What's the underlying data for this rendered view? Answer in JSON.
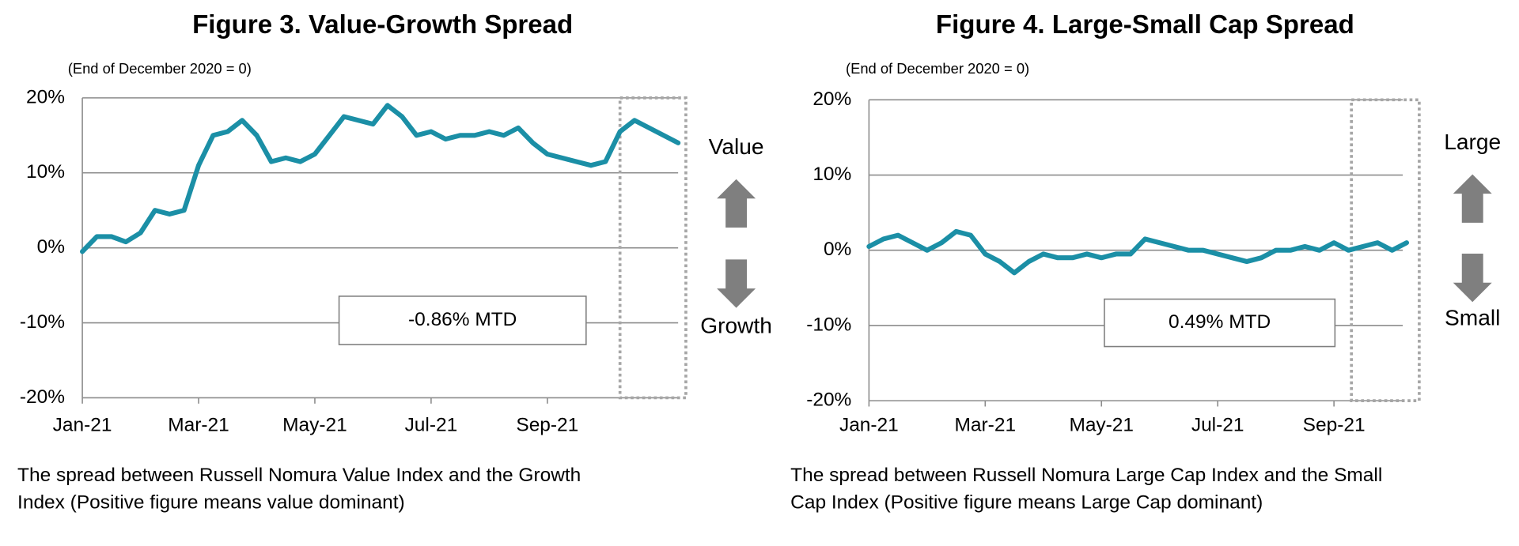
{
  "chart_data": [
    {
      "type": "line",
      "title": "Figure 3. Value-Growth Spread",
      "subtitle": "(End of December 2020 = 0)",
      "categories": [
        "Jan-21",
        null,
        null,
        null,
        null,
        null,
        null,
        null,
        "Mar-21",
        null,
        null,
        null,
        null,
        null,
        null,
        null,
        "May-21",
        null,
        null,
        null,
        null,
        null,
        null,
        null,
        "Jul-21",
        null,
        null,
        null,
        null,
        null,
        null,
        null,
        "Sep-21",
        null,
        null,
        null,
        null,
        null,
        null,
        null,
        null,
        null
      ],
      "values": [
        -0.5,
        1.5,
        1.5,
        0.8,
        2,
        5,
        4.5,
        5,
        11,
        15,
        15.5,
        17,
        15,
        11.5,
        12,
        11.5,
        12.5,
        15,
        17.5,
        17,
        16.5,
        19,
        17.5,
        15,
        15.5,
        14.5,
        15,
        15,
        15.5,
        15,
        16,
        14,
        12.5,
        12,
        11.5,
        11,
        11.5,
        15.5,
        17,
        16,
        15,
        14
      ],
      "color": "#1b8fa6",
      "ylim": [
        -20,
        20
      ],
      "yticks": [
        {
          "value": -20,
          "label": "-20%"
        },
        {
          "value": -10,
          "label": "-10%"
        },
        {
          "value": 0,
          "label": "0%"
        },
        {
          "value": 10,
          "label": "10%"
        },
        {
          "value": 20,
          "label": "20%"
        }
      ],
      "grid": true,
      "annotation": "-0.86% MTD",
      "upper_label": "Value",
      "lower_label": "Growth",
      "caption": [
        "The spread between Russell Nomura Value Index and the Growth",
        "Index (Positive figure means value dominant)"
      ]
    },
    {
      "type": "line",
      "title": "Figure 4. Large-Small Cap Spread",
      "subtitle": "(End of December 2020 = 0)",
      "categories": [
        "Jan-21",
        null,
        null,
        null,
        null,
        null,
        null,
        null,
        "Mar-21",
        null,
        null,
        null,
        null,
        null,
        null,
        null,
        "May-21",
        null,
        null,
        null,
        null,
        null,
        null,
        null,
        "Jul-21",
        null,
        null,
        null,
        null,
        null,
        null,
        null,
        "Sep-21",
        null,
        null,
        null,
        null,
        null
      ],
      "values": [
        0.5,
        1.5,
        2,
        1,
        0,
        1,
        2.5,
        2,
        -0.5,
        -1.5,
        -3,
        -1.5,
        -0.5,
        -1,
        -1,
        -0.5,
        -1,
        -0.5,
        -0.5,
        1.5,
        1,
        0.5,
        0,
        0,
        -0.5,
        -1,
        -1.5,
        -1,
        0,
        0,
        0.5,
        0,
        1,
        0,
        0.5,
        1,
        0,
        1
      ],
      "color": "#1b8fa6",
      "ylim": [
        -20,
        20
      ],
      "yticks": [
        {
          "value": -20,
          "label": "-20%"
        },
        {
          "value": -10,
          "label": "-10%"
        },
        {
          "value": 0,
          "label": "0%"
        },
        {
          "value": 10,
          "label": "10%"
        },
        {
          "value": 20,
          "label": "20%"
        }
      ],
      "grid": true,
      "annotation": "0.49% MTD",
      "upper_label": "Large",
      "lower_label": "Small",
      "caption": [
        "The spread between Russell Nomura Large Cap Index and the Small",
        "Cap Index (Positive figure means Large Cap dominant)"
      ]
    }
  ]
}
